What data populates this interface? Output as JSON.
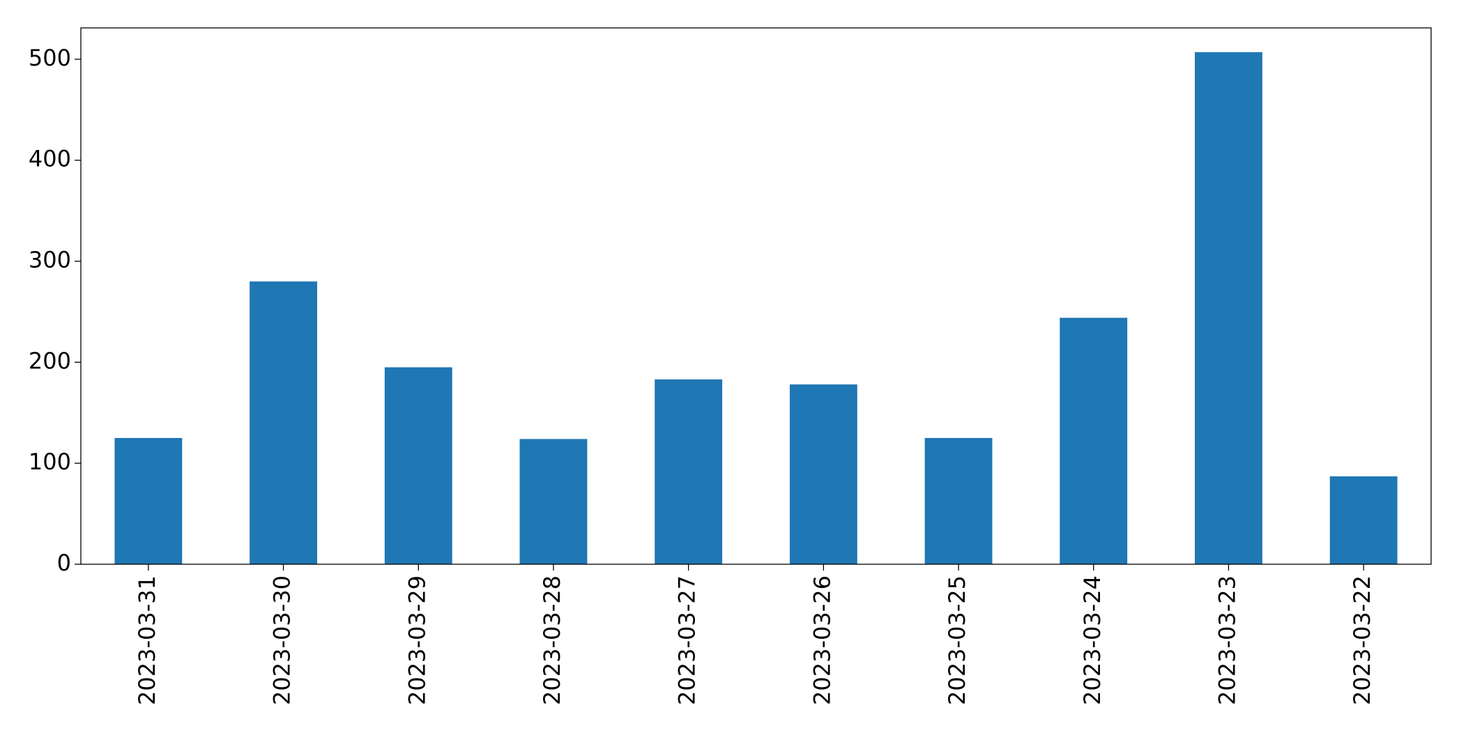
{
  "chart_data": {
    "type": "bar",
    "categories": [
      "2023-03-31",
      "2023-03-30",
      "2023-03-29",
      "2023-03-28",
      "2023-03-27",
      "2023-03-26",
      "2023-03-25",
      "2023-03-24",
      "2023-03-23",
      "2023-03-22"
    ],
    "values": [
      125,
      280,
      195,
      124,
      183,
      178,
      125,
      244,
      507,
      87
    ],
    "color": "#1f77b4",
    "ylim": [
      0,
      531
    ],
    "yticks": [
      0,
      100,
      200,
      300,
      400,
      500
    ],
    "grid": false
  }
}
